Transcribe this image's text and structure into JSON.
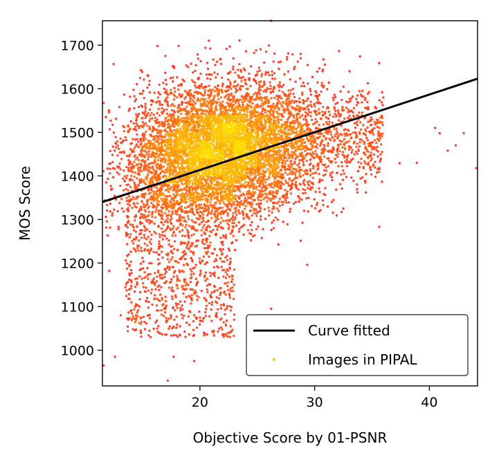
{
  "chart_data": {
    "type": "scatter",
    "title": "",
    "xlabel": "Objective Score by 01-PSNR",
    "ylabel": "MOS Score",
    "xlim": [
      11.5,
      44.2
    ],
    "ylim": [
      918,
      1756
    ],
    "xticks": [
      20,
      30,
      40
    ],
    "yticks": [
      1000,
      1100,
      1200,
      1300,
      1400,
      1500,
      1600,
      1700
    ],
    "grid": false,
    "legend_position": "lower-right",
    "series": [
      {
        "name": "Curve fitted",
        "kind": "line",
        "color": "#000000",
        "x": [
          11.5,
          44.2
        ],
        "y": [
          1340,
          1623
        ]
      },
      {
        "name": "Images in PIPAL",
        "kind": "scatter-density",
        "colormap": [
          "#ff1e1e",
          "#ff6a10",
          "#ffb400",
          "#ffe000"
        ],
        "cluster_center": [
          21.8,
          1458
        ],
        "sample_points": [
          [
            16.3,
            1698
          ],
          [
            22.6,
            1697
          ],
          [
            24.9,
            1688
          ],
          [
            26.2,
            1756
          ],
          [
            20.9,
            1692
          ],
          [
            12.1,
            1182
          ],
          [
            12.6,
            985
          ],
          [
            13.1,
            1080
          ],
          [
            11.6,
            965
          ],
          [
            19.5,
            975
          ],
          [
            17.2,
            930
          ],
          [
            17.7,
            985
          ],
          [
            26.2,
            1095
          ],
          [
            34.8,
            1475
          ],
          [
            37.4,
            1429
          ],
          [
            38.9,
            1430
          ],
          [
            41.6,
            1458
          ],
          [
            42.3,
            1470
          ],
          [
            43.0,
            1498
          ],
          [
            44.1,
            1418
          ],
          [
            40.5,
            1510
          ],
          [
            40.9,
            1498
          ],
          [
            32.5,
            1325
          ],
          [
            35.1,
            1426
          ],
          [
            15.6,
            1618
          ]
        ]
      }
    ]
  },
  "colors": {
    "fit_line": "#000000",
    "scatter_low": "#ff1e1e",
    "scatter_mid": "#ff8a00",
    "scatter_high": "#ffe000",
    "legend_marker": "#ffbe3c",
    "legend_border": "#222222"
  }
}
